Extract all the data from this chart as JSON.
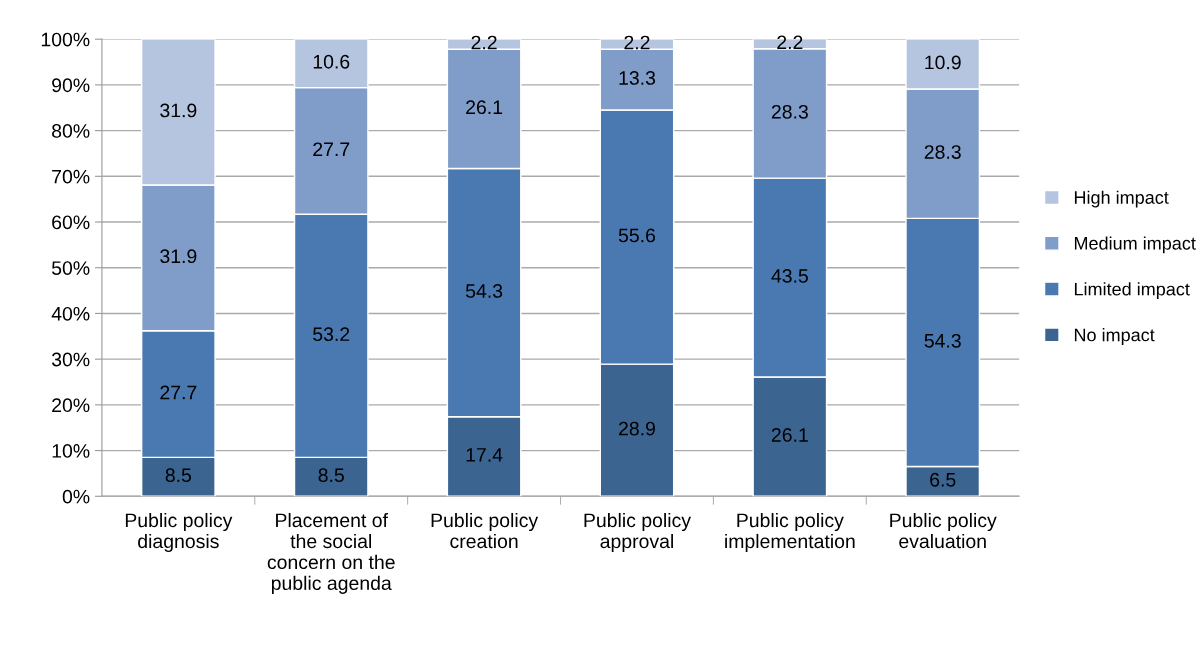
{
  "chart_data": {
    "type": "bar",
    "stacked": true,
    "data_labels": true,
    "grid": "y",
    "legend": "right",
    "categories": [
      "Public policy\ndiagnosis",
      "Placement of\nthe social\nconcern on the\npublic agenda",
      "Public policy\ncreation",
      "Public policy\napproval",
      "Public policy\nimplementation",
      "Public policy\nevaluation"
    ],
    "ylim": [
      0,
      100
    ],
    "yticks": [
      {
        "value": 0,
        "label": "0%"
      },
      {
        "value": 10,
        "label": "10%"
      },
      {
        "value": 20,
        "label": "20%"
      },
      {
        "value": 30,
        "label": "30%"
      },
      {
        "value": 40,
        "label": "40%"
      },
      {
        "value": 50,
        "label": "50%"
      },
      {
        "value": 60,
        "label": "60%"
      },
      {
        "value": 70,
        "label": "70%"
      },
      {
        "value": 80,
        "label": "80%"
      },
      {
        "value": 90,
        "label": "90%"
      },
      {
        "value": 100,
        "label": "100%"
      }
    ],
    "series": [
      {
        "name": "No impact",
        "color": "#3b6491",
        "values": [
          8.5,
          8.5,
          17.4,
          28.9,
          26.1,
          6.5
        ]
      },
      {
        "name": "Limited impact",
        "color": "#4a78b0",
        "values": [
          27.7,
          53.2,
          54.3,
          55.6,
          43.5,
          54.3
        ]
      },
      {
        "name": "Medium impact",
        "color": "#7f9dc8",
        "values": [
          31.9,
          27.7,
          26.1,
          13.3,
          28.3,
          28.3
        ]
      },
      {
        "name": "High impact",
        "color": "#b5c4df",
        "values": [
          31.9,
          10.6,
          2.2,
          2.2,
          2.2,
          10.9
        ]
      }
    ]
  }
}
